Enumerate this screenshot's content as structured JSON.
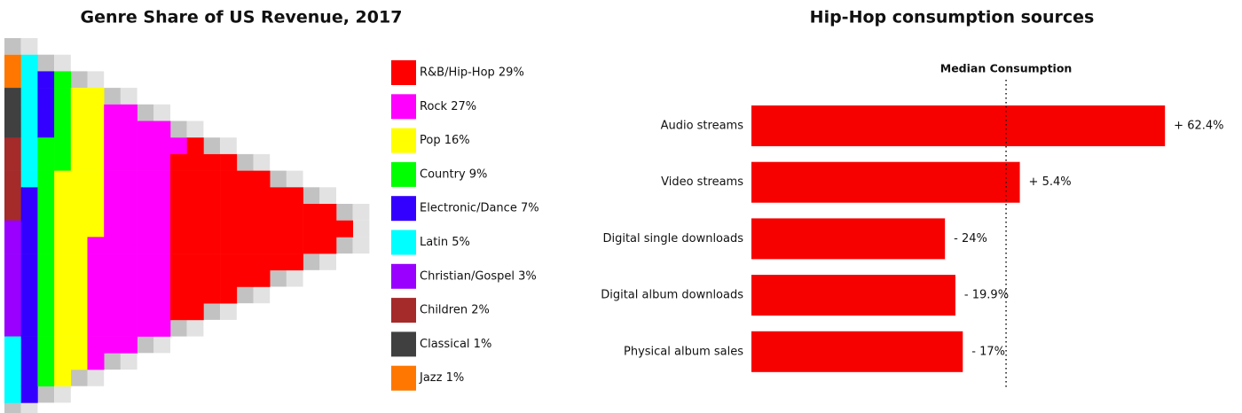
{
  "chart_data": [
    {
      "type": "waffle",
      "title": "Genre Share of US Revenue, 2017",
      "categories": [
        "R&B/Hip-Hop 29%",
        "Rock 27%",
        "Pop 16%",
        "Country 9%",
        "Electronic/Dance 7%",
        "Latin 5%",
        "Christian/Gospel 3%",
        "Children 2%",
        "Classical 1%",
        "Jazz 1%"
      ],
      "values": [
        29,
        27,
        16,
        9,
        7,
        5,
        3,
        2,
        1,
        1
      ],
      "colors": [
        "#ff0000",
        "#ff00ff",
        "#ffff00",
        "#00ff00",
        "#3300ff",
        "#00ffff",
        "#9900ff",
        "#a52a2a",
        "#404040",
        "#ff7700"
      ]
    },
    {
      "type": "bar",
      "title": "Hip-Hop consumption sources",
      "annotation": "Median Consumption",
      "categories": [
        "Audio streams",
        "Video streams",
        "Digital single downloads",
        "Digital album downloads",
        "Physical album sales"
      ],
      "values": [
        62.4,
        5.4,
        -24,
        -19.9,
        -17
      ],
      "value_labels": [
        "+ 62.4%",
        "+ 5.4%",
        "- 24%",
        "- 19.9%",
        "- 17%"
      ],
      "color": "#f70000",
      "xlim": [
        -100,
        70
      ]
    }
  ]
}
